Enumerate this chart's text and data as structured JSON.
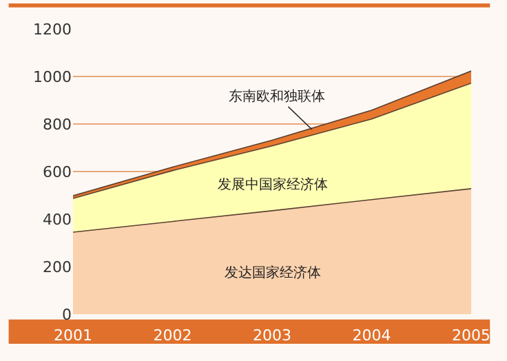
{
  "chart_data": {
    "type": "area",
    "stacked": true,
    "x": [
      2001,
      2002,
      2003,
      2004,
      2005
    ],
    "series": [
      {
        "name": "发达国家经济体",
        "color": "#fbd2ae",
        "values": [
          345,
          390,
          435,
          482,
          528
        ]
      },
      {
        "name": "发展中国家经济体",
        "color": "#ffffb4",
        "values": [
          142,
          214,
          273,
          339,
          444
        ]
      },
      {
        "name": "东南欧和独联体",
        "color": "#e8772e",
        "values": [
          11,
          15,
          24,
          37,
          51
        ]
      }
    ],
    "xlim": [
      2001,
      2005
    ],
    "xticks": [
      2001,
      2002,
      2003,
      2004,
      2005
    ],
    "ylim": [
      0,
      1200
    ],
    "yticks": [
      0,
      200,
      400,
      600,
      800,
      1000,
      1200
    ],
    "grid": "y",
    "legend": false
  }
}
